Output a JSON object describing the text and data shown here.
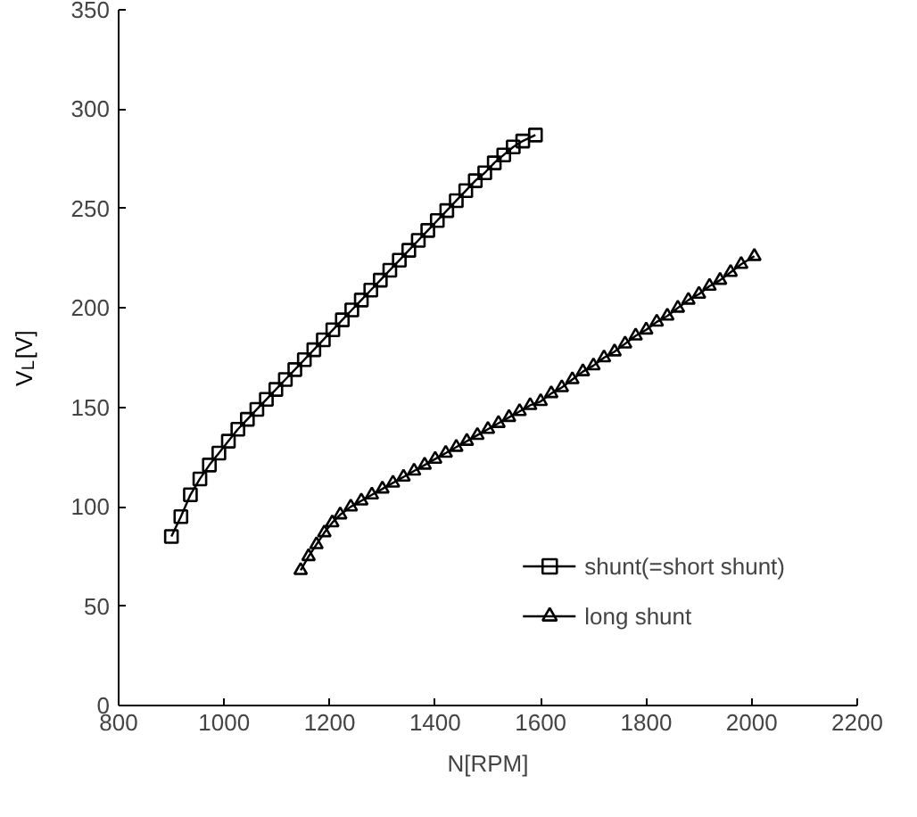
{
  "chart_data": {
    "type": "line",
    "xlabel": "N[RPM]",
    "ylabel": "V$_{L}$[V]",
    "xlim": [
      800,
      2200
    ],
    "xticks": [
      800,
      1000,
      1200,
      1400,
      1600,
      1800,
      2000,
      2200
    ],
    "ylim": [
      0,
      350
    ],
    "yticks": [
      0,
      50,
      100,
      150,
      200,
      250,
      300,
      350
    ],
    "grid": false,
    "legend": "bottom right",
    "line_style": "solid",
    "series": [
      {
        "name": "shunt(=short shunt)",
        "color": "#000000",
        "marker": "square",
        "x": [
          900,
          918,
          936,
          954,
          972,
          990,
          1008,
          1026,
          1044,
          1062,
          1080,
          1098,
          1116,
          1134,
          1152,
          1170,
          1188,
          1206,
          1224,
          1242,
          1260,
          1278,
          1296,
          1314,
          1332,
          1350,
          1368,
          1386,
          1404,
          1422,
          1440,
          1458,
          1476,
          1494,
          1512,
          1530,
          1548,
          1566,
          1590
        ],
        "values": [
          85,
          95,
          106,
          114,
          121,
          127,
          133,
          139,
          144,
          149,
          154,
          159,
          164,
          169,
          174,
          179,
          184,
          189,
          194,
          199,
          204,
          209,
          214,
          219,
          224,
          229,
          234,
          239,
          244,
          249,
          254,
          259,
          264,
          268,
          273,
          277,
          281,
          284,
          287
        ]
      },
      {
        "name": "long shunt",
        "color": "#000000",
        "marker": "triangle",
        "x": [
          1145,
          1160,
          1175,
          1190,
          1205,
          1220,
          1240,
          1260,
          1280,
          1300,
          1320,
          1340,
          1360,
          1380,
          1400,
          1420,
          1440,
          1460,
          1480,
          1500,
          1520,
          1540,
          1560,
          1580,
          1600,
          1620,
          1640,
          1660,
          1680,
          1700,
          1720,
          1740,
          1760,
          1780,
          1800,
          1820,
          1840,
          1860,
          1880,
          1900,
          1920,
          1940,
          1960,
          1980,
          2005
        ],
        "values": [
          68,
          75,
          81,
          87,
          92,
          96,
          100,
          103,
          106,
          109,
          112,
          115,
          118,
          121,
          124,
          127,
          130,
          133,
          136,
          139,
          142,
          145,
          148,
          151,
          153,
          157,
          160,
          164,
          168,
          171,
          175,
          178,
          182,
          186,
          189,
          193,
          196,
          200,
          204,
          207,
          211,
          214,
          218,
          222,
          226
        ]
      }
    ]
  }
}
